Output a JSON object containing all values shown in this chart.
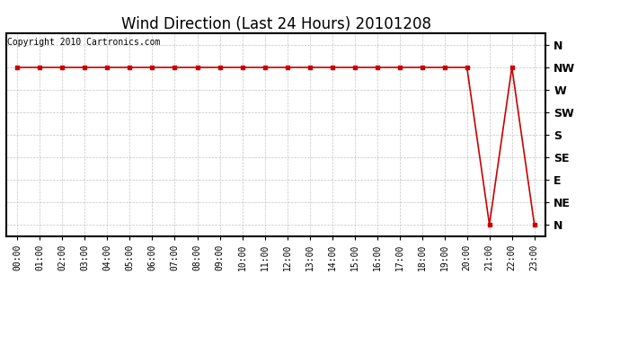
{
  "title": "Wind Direction (Last 24 Hours) 20101208",
  "copyright_text": "Copyright 2010 Cartronics.com",
  "line_color": "#cc0000",
  "marker": "s",
  "marker_size": 3,
  "background_color": "#ffffff",
  "grid_color": "#aaaaaa",
  "x_labels": [
    "00:00",
    "01:00",
    "02:00",
    "03:00",
    "04:00",
    "05:00",
    "06:00",
    "07:00",
    "08:00",
    "09:00",
    "10:00",
    "11:00",
    "12:00",
    "13:00",
    "14:00",
    "15:00",
    "16:00",
    "17:00",
    "18:00",
    "19:00",
    "20:00",
    "21:00",
    "22:00",
    "23:00"
  ],
  "y_labels": [
    "N",
    "NW",
    "W",
    "SW",
    "S",
    "SE",
    "E",
    "NE",
    "N"
  ],
  "data_y": [
    1,
    1,
    1,
    1,
    1,
    1,
    1,
    1,
    1,
    1,
    1,
    1,
    1,
    1,
    1,
    1,
    1,
    1,
    1,
    1,
    1,
    8,
    1,
    8
  ],
  "ylim": [
    0,
    8
  ],
  "title_fontsize": 12,
  "axis_fontsize": 9,
  "xtick_fontsize": 7,
  "copyright_fontsize": 7,
  "line_width": 1.2
}
